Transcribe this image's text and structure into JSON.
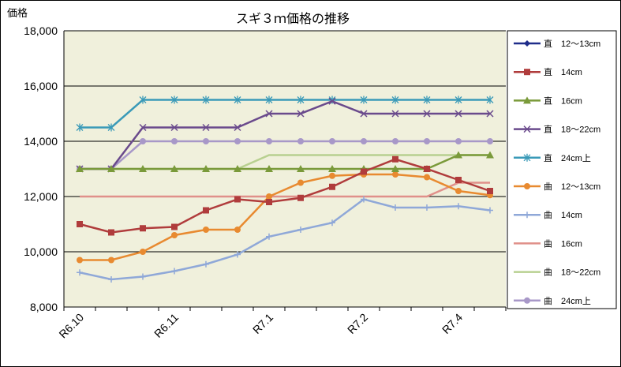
{
  "chart_data": {
    "type": "line",
    "title": "スギ３ｍ価格の推移",
    "ylabel": "価格",
    "xlabel": "",
    "ylim": [
      8000,
      18000
    ],
    "yticks": [
      8000,
      10000,
      12000,
      14000,
      16000,
      18000
    ],
    "ytick_labels": [
      "8,000",
      "10,000",
      "12,000",
      "14,000",
      "16,000",
      "18,000"
    ],
    "grid": true,
    "legend_position": "right",
    "x_tick_labels": [
      {
        "index": 0,
        "label": "R6.10"
      },
      {
        "index": 3,
        "label": "R6.11"
      },
      {
        "index": 6,
        "label": "R7.1"
      },
      {
        "index": 9,
        "label": "R7.2"
      },
      {
        "index": 12,
        "label": "R7.4"
      }
    ],
    "point_count": 14,
    "series": [
      {
        "name": "直　12～13cm",
        "color": "#1f2d8a",
        "marker": "diamond",
        "values": [
          null,
          null,
          null,
          null,
          null,
          null,
          null,
          null,
          null,
          null,
          null,
          null,
          null,
          null
        ]
      },
      {
        "name": "直　14cm",
        "color": "#b03c3c",
        "marker": "square",
        "values": [
          11000,
          10700,
          10850,
          10900,
          11500,
          11900,
          11800,
          11950,
          12350,
          12900,
          13350,
          13000,
          12600,
          12200
        ]
      },
      {
        "name": "直　16cm",
        "color": "#7a9a3a",
        "marker": "triangle",
        "values": [
          13000,
          13000,
          13000,
          13000,
          13000,
          13000,
          13000,
          13000,
          13000,
          13000,
          13000,
          13000,
          13500,
          13500
        ]
      },
      {
        "name": "直　18～22cm",
        "color": "#6a4a8c",
        "marker": "x",
        "values": [
          13000,
          13000,
          14500,
          14500,
          14500,
          14500,
          15000,
          15000,
          15450,
          15000,
          15000,
          15000,
          15000,
          15000
        ]
      },
      {
        "name": "直　24cm上",
        "color": "#3a9ab8",
        "marker": "star",
        "values": [
          14500,
          14500,
          15500,
          15500,
          15500,
          15500,
          15500,
          15500,
          15500,
          15500,
          15500,
          15500,
          15500,
          15500
        ]
      },
      {
        "name": "曲　12～13cm",
        "color": "#e88a30",
        "marker": "circle",
        "values": [
          9700,
          9700,
          10000,
          10600,
          10800,
          10800,
          12000,
          12500,
          12750,
          12800,
          12800,
          12700,
          12200,
          12050
        ]
      },
      {
        "name": "曲　14cm",
        "color": "#8fa8d8",
        "marker": "plus",
        "values": [
          9250,
          9000,
          9100,
          9300,
          9550,
          9900,
          10550,
          10800,
          11050,
          11900,
          11600,
          11600,
          11650,
          11500
        ]
      },
      {
        "name": "曲　16cm",
        "color": "#e0908a",
        "marker": "none",
        "values": [
          12000,
          12000,
          12000,
          12000,
          12000,
          12000,
          12000,
          12000,
          12000,
          12000,
          12000,
          12000,
          12500,
          12500
        ]
      },
      {
        "name": "曲　18～22cm",
        "color": "#b8d090",
        "marker": "none",
        "values": [
          13000,
          13000,
          13000,
          13000,
          13000,
          13000,
          13500,
          13500,
          13500,
          13500,
          13500,
          13500,
          13500,
          13500
        ]
      },
      {
        "name": "曲　24cm上",
        "color": "#a898c8",
        "marker": "circle",
        "values": [
          13000,
          13000,
          14000,
          14000,
          14000,
          14000,
          14000,
          14000,
          14000,
          14000,
          14000,
          14000,
          14000,
          14000
        ]
      }
    ]
  }
}
